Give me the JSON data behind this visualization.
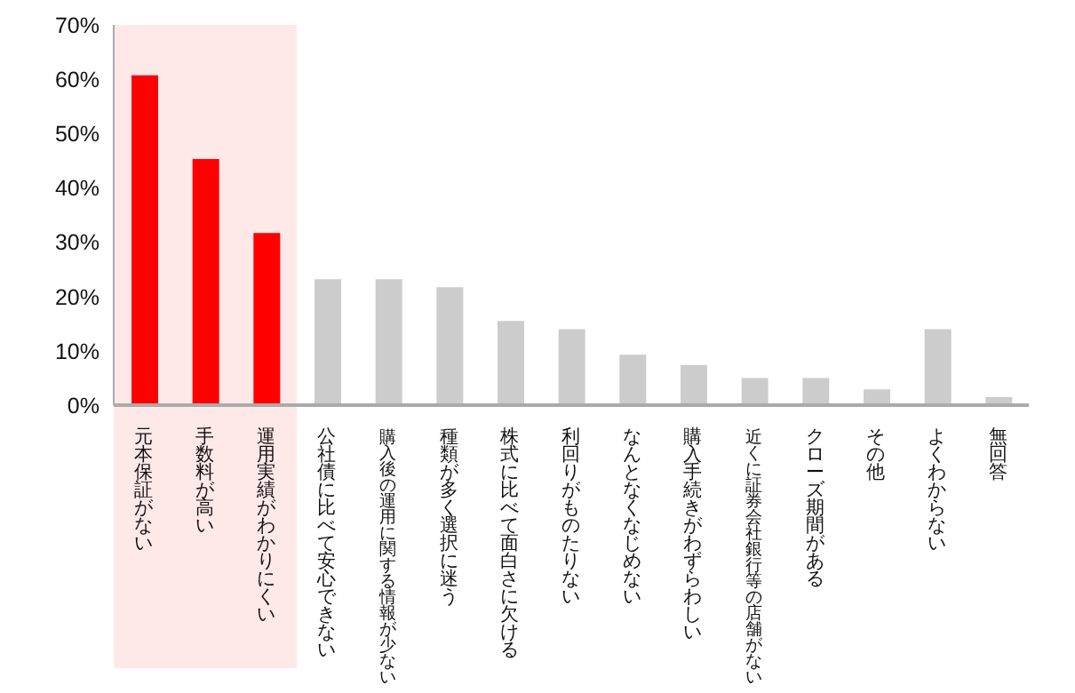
{
  "chart_data": {
    "type": "bar",
    "categories": [
      "元本保証がない",
      "手数料が高い",
      "運用実績がわかりにくい",
      "公社債に比べて安心できない",
      "購入後の運用に関する情報が少ない",
      "種類が多く選択に迷う",
      "株式に比べて面白さに欠ける",
      "利回りがものたりない",
      "なんとなくなじめない",
      "購入手続きがわずらわしい",
      "近くに証券会社銀行等の店舗がない",
      "クローズ期間がある",
      "その他",
      "よくわからない",
      "無回答"
    ],
    "values": [
      60.7,
      45.3,
      31.7,
      23.2,
      23.2,
      21.7,
      15.5,
      14.0,
      9.3,
      7.4,
      5.0,
      5.0,
      2.9,
      14.0,
      1.5
    ],
    "colors": [
      "#ff0000",
      "#ff0000",
      "#ff0000",
      "#cccccc",
      "#cccccc",
      "#cccccc",
      "#cccccc",
      "#cccccc",
      "#cccccc",
      "#cccccc",
      "#cccccc",
      "#cccccc",
      "#cccccc",
      "#cccccc",
      "#cccccc"
    ],
    "ylim": [
      0,
      70
    ],
    "yticks": [
      {
        "value": 0,
        "label": "0%"
      },
      {
        "value": 10,
        "label": "10%"
      },
      {
        "value": 20,
        "label": "20%"
      },
      {
        "value": 30,
        "label": "30%"
      },
      {
        "value": 40,
        "label": "40%"
      },
      {
        "value": 50,
        "label": "50%"
      },
      {
        "value": 60,
        "label": "60%"
      },
      {
        "value": 70,
        "label": "70%"
      }
    ],
    "bands": [
      {
        "axis": "x",
        "from": "元本保証がない",
        "to": "運用実績がわかりにくい",
        "color": "#ffe8e8"
      }
    ],
    "grid": false,
    "legend": false
  }
}
